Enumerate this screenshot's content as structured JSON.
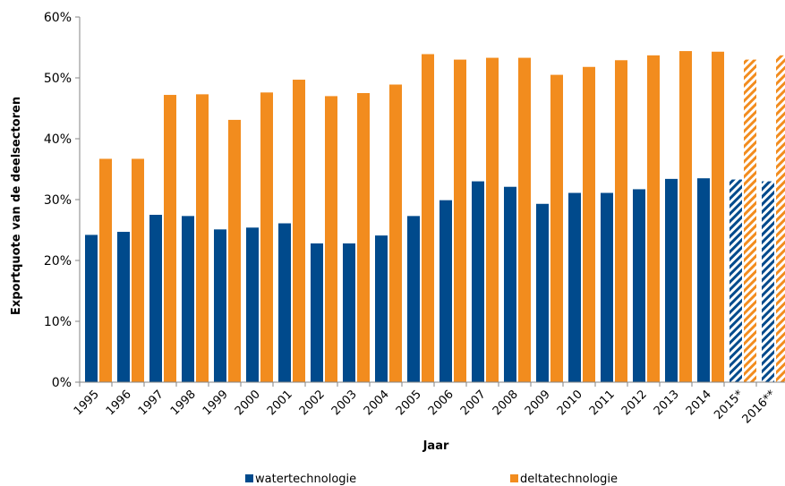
{
  "chart_data": {
    "type": "bar",
    "title": "",
    "xlabel": "Jaar",
    "ylabel": "Exportquote van de deelsectoren",
    "ylim": [
      0,
      60
    ],
    "yticks": [
      "0%",
      "10%",
      "20%",
      "30%",
      "40%",
      "50%",
      "60%"
    ],
    "grid": false,
    "legend_position": "bottom",
    "categories": [
      "1995",
      "1996",
      "1997",
      "1998",
      "1999",
      "2000",
      "2001",
      "2002",
      "2003",
      "2004",
      "2005",
      "2006",
      "2007",
      "2008",
      "2009",
      "2010",
      "2011",
      "2012",
      "2013",
      "2014",
      "2015*",
      "2016**"
    ],
    "estimated_categories": [
      "2015*",
      "2016**"
    ],
    "series": [
      {
        "name": "watertechnologie",
        "color": "#004A8C",
        "values": [
          24.2,
          24.7,
          27.5,
          27.3,
          25.1,
          25.4,
          26.1,
          22.8,
          22.8,
          24.1,
          27.3,
          29.9,
          33.0,
          32.1,
          29.3,
          31.1,
          31.1,
          31.7,
          33.4,
          33.5,
          33.3,
          33.0
        ]
      },
      {
        "name": "deltatechnologie",
        "color": "#F28C1E",
        "values": [
          36.7,
          36.7,
          47.2,
          47.3,
          43.1,
          47.6,
          49.7,
          47.0,
          47.5,
          48.9,
          53.9,
          53.0,
          53.3,
          53.3,
          50.5,
          51.8,
          52.9,
          53.7,
          54.4,
          54.3,
          53.0,
          53.7
        ]
      }
    ]
  }
}
